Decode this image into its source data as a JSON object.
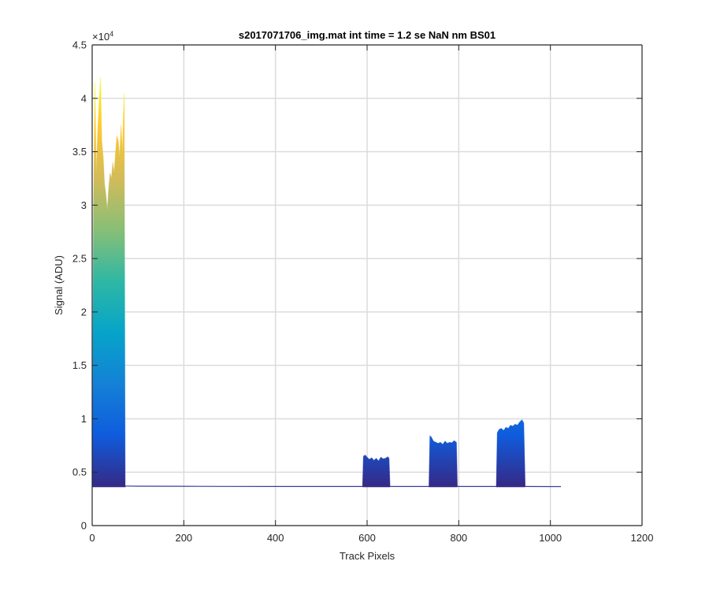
{
  "chart_data": {
    "type": "area",
    "title": "s2017071706_img.mat int time = 1.2 se  NaN nm BS01",
    "xlabel": "Track Pixels",
    "ylabel": "Signal (ADU)",
    "xlim": [
      0,
      1200
    ],
    "ylim": [
      0,
      45000
    ],
    "x_ticks": [
      0,
      200,
      400,
      600,
      800,
      1000,
      1200
    ],
    "x_tick_labels": [
      "0",
      "200",
      "400",
      "600",
      "800",
      "1000",
      "1200"
    ],
    "y_ticks": [
      0,
      5000,
      10000,
      15000,
      20000,
      25000,
      30000,
      35000,
      40000,
      45000
    ],
    "y_tick_labels": [
      "0",
      "0.5",
      "1",
      "1.5",
      "2",
      "2.5",
      "3",
      "3.5",
      "4",
      "4.5"
    ],
    "y_exponent_label": "×10",
    "y_exponent_power": "4",
    "grid": true,
    "colormap": [
      "#352a87",
      "#0f5cdd",
      "#1481d6",
      "#06a4ca",
      "#2eb7a4",
      "#87bf77",
      "#d1bb59",
      "#fec832",
      "#f9fb0e"
    ],
    "series": [
      {
        "x": [
          0,
          3,
          6,
          9,
          12,
          15,
          18,
          21,
          24,
          27,
          30,
          33,
          36,
          39,
          42,
          45,
          48,
          51,
          54,
          57,
          60,
          63,
          66,
          68,
          70,
          72,
          73
        ],
        "y": [
          3700,
          30000,
          41500,
          33000,
          37000,
          39500,
          42000,
          36000,
          34500,
          32000,
          31000,
          29500,
          31500,
          33000,
          32500,
          34000,
          33000,
          35000,
          36500,
          36000,
          34500,
          37500,
          35000,
          38500,
          40500,
          3700,
          3700
        ]
      },
      {
        "x": [
          73,
          100,
          200,
          300,
          400,
          500,
          590
        ],
        "y": [
          3700,
          3690,
          3680,
          3670,
          3660,
          3660,
          3660
        ]
      },
      {
        "x": [
          590,
          592,
          596,
          600,
          605,
          610,
          615,
          620,
          625,
          630,
          635,
          640,
          645,
          648,
          650
        ],
        "y": [
          3660,
          6500,
          6600,
          6400,
          6200,
          6350,
          6100,
          6300,
          6050,
          6400,
          6250,
          6300,
          6450,
          6300,
          3660
        ]
      },
      {
        "x": [
          650,
          700,
          735
        ],
        "y": [
          3660,
          3660,
          3660
        ]
      },
      {
        "x": [
          735,
          737,
          740,
          745,
          750,
          755,
          760,
          765,
          770,
          775,
          780,
          785,
          790,
          795,
          797
        ],
        "y": [
          3660,
          8400,
          8300,
          7900,
          7800,
          7700,
          7800,
          7600,
          7900,
          7700,
          7800,
          7750,
          7950,
          7800,
          3660
        ]
      },
      {
        "x": [
          797,
          850,
          882
        ],
        "y": [
          3660,
          3660,
          3660
        ]
      },
      {
        "x": [
          882,
          884,
          888,
          893,
          898,
          903,
          908,
          913,
          918,
          923,
          928,
          933,
          938,
          942,
          945
        ],
        "y": [
          3660,
          8700,
          9000,
          9100,
          8900,
          9200,
          9100,
          9400,
          9300,
          9500,
          9400,
          9700,
          9900,
          9600,
          3660
        ]
      },
      {
        "x": [
          945,
          1000,
          1023
        ],
        "y": [
          3660,
          3650,
          3650
        ]
      }
    ]
  }
}
